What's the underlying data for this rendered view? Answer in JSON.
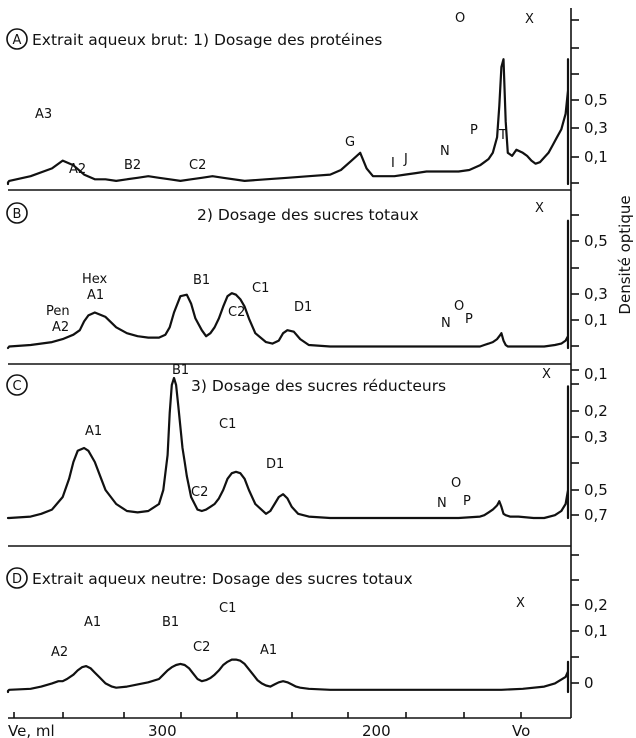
{
  "chart_data": [
    {
      "type": "line",
      "panel": "A",
      "title": "Extrait aqueux brut: 1) Dosage des protéines",
      "x": [
        390,
        380,
        370,
        360,
        350,
        345,
        340,
        335,
        330,
        325,
        320,
        315,
        310,
        305,
        300,
        295,
        290,
        285,
        280,
        275,
        270,
        260,
        250,
        240,
        230,
        220,
        215,
        210,
        206,
        203,
        200,
        190,
        185,
        180,
        175,
        170,
        165,
        160,
        155,
        150,
        148,
        146,
        144,
        142,
        141,
        140,
        139,
        138,
        137,
        135,
        133,
        130,
        128,
        126,
        124,
        122,
        120,
        118,
        116,
        114,
        112,
        110,
        108,
        106,
        104,
        102,
        100,
        98,
        96,
        94,
        92,
        90,
        88,
        86,
        84,
        80,
        70
      ],
      "y": [
        0,
        0.01,
        0.02,
        0.05,
        0.1,
        0.15,
        0.12,
        0.06,
        0.03,
        0.03,
        0.02,
        0.03,
        0.04,
        0.05,
        0.04,
        0.03,
        0.02,
        0.03,
        0.04,
        0.05,
        0.04,
        0.02,
        0.03,
        0.04,
        0.05,
        0.06,
        0.09,
        0.15,
        0.2,
        0.1,
        0.05,
        0.05,
        0.06,
        0.07,
        0.08,
        0.08,
        0.08,
        0.08,
        0.09,
        0.12,
        0.14,
        0.16,
        0.2,
        0.3,
        0.5,
        0.75,
        0.8,
        0.4,
        0.2,
        0.18,
        0.22,
        0.2,
        0.18,
        0.15,
        0.13,
        0.14,
        0.17,
        0.2,
        0.25,
        0.3,
        0.35,
        0.45,
        0.6,
        0.73,
        0.79,
        0.8,
        0.79,
        0.72,
        0.55,
        0.35,
        0.18,
        0.08,
        0.03,
        0.01,
        0.0,
        0,
        0
      ],
      "right_axis_ticks": [
        "0,5",
        "0,3",
        "0,1"
      ],
      "peak_labels": [
        "A3",
        "A2",
        "B2",
        "C2",
        "G",
        "I",
        "J",
        "N",
        "O",
        "P",
        "T",
        "X"
      ]
    },
    {
      "type": "line",
      "panel": "B",
      "title": "2) Dosage des sucres totaux",
      "x": [
        390,
        380,
        370,
        360,
        350,
        345,
        340,
        337,
        335,
        333,
        330,
        325,
        320,
        315,
        310,
        305,
        300,
        297,
        295,
        293,
        290,
        287,
        285,
        283,
        280,
        278,
        276,
        274,
        272,
        270,
        268,
        266,
        264,
        262,
        260,
        258,
        255,
        250,
        247,
        244,
        242,
        240,
        237,
        234,
        230,
        220,
        210,
        200,
        190,
        180,
        170,
        160,
        155,
        150,
        148,
        146,
        144,
        142,
        141,
        140,
        139,
        138,
        137,
        136,
        134,
        130,
        125,
        120,
        115,
        112,
        110,
        108,
        106,
        104,
        102,
        100,
        99,
        98,
        96,
        94,
        92,
        90,
        88,
        86,
        84,
        80,
        70
      ],
      "y": [
        0,
        0,
        0.01,
        0.02,
        0.04,
        0.06,
        0.09,
        0.12,
        0.18,
        0.22,
        0.24,
        0.21,
        0.14,
        0.1,
        0.08,
        0.07,
        0.07,
        0.09,
        0.14,
        0.24,
        0.35,
        0.36,
        0.3,
        0.2,
        0.12,
        0.08,
        0.1,
        0.14,
        0.2,
        0.28,
        0.35,
        0.37,
        0.36,
        0.33,
        0.28,
        0.2,
        0.1,
        0.04,
        0.03,
        0.05,
        0.1,
        0.12,
        0.11,
        0.06,
        0.02,
        0.01,
        0.01,
        0.01,
        0.01,
        0.01,
        0.01,
        0.01,
        0.01,
        0.01,
        0.02,
        0.03,
        0.04,
        0.06,
        0.08,
        0.1,
        0.05,
        0.02,
        0.01,
        0.01,
        0.01,
        0.01,
        0.01,
        0.01,
        0.02,
        0.03,
        0.05,
        0.08,
        0.12,
        0.2,
        0.3,
        0.45,
        0.55,
        0.65,
        0.82,
        0.86,
        0.82,
        0.65,
        0.4,
        0.2,
        0.07,
        0.01,
        0
      ],
      "right_axis_ticks": [
        "0,5",
        "0,3",
        "0,1"
      ],
      "peak_labels": [
        "Pen A2",
        "Hex A1",
        "B1",
        "C2",
        "C1",
        "D1",
        "N",
        "O",
        "P",
        "X"
      ]
    },
    {
      "type": "line",
      "panel": "C",
      "title": "3) Dosage des sucres réducteurs",
      "x": [
        390,
        380,
        370,
        360,
        355,
        350,
        345,
        342,
        340,
        338,
        335,
        333,
        330,
        327,
        325,
        320,
        315,
        310,
        305,
        300,
        298,
        296,
        295,
        294,
        293,
        292,
        291,
        290,
        289,
        288,
        287,
        285,
        282,
        280,
        278,
        276,
        274,
        272,
        270,
        268,
        266,
        264,
        262,
        260,
        258,
        255,
        250,
        248,
        246,
        244,
        242,
        240,
        238,
        235,
        230,
        220,
        210,
        200,
        190,
        180,
        170,
        160,
        150,
        148,
        146,
        144,
        142,
        141,
        140,
        139,
        138,
        136,
        132,
        125,
        120,
        115,
        112,
        110,
        108,
        106,
        104,
        102,
        100,
        99,
        98,
        96,
        94,
        92,
        90,
        88,
        86,
        84,
        80,
        70
      ],
      "y": [
        0,
        0,
        0,
        0.01,
        0.03,
        0.06,
        0.15,
        0.28,
        0.4,
        0.48,
        0.5,
        0.48,
        0.4,
        0.28,
        0.2,
        0.1,
        0.05,
        0.04,
        0.05,
        0.1,
        0.2,
        0.45,
        0.75,
        0.95,
        1.0,
        0.95,
        0.8,
        0.65,
        0.5,
        0.4,
        0.3,
        0.15,
        0.06,
        0.05,
        0.06,
        0.08,
        0.1,
        0.14,
        0.2,
        0.28,
        0.32,
        0.33,
        0.32,
        0.28,
        0.2,
        0.1,
        0.03,
        0.05,
        0.1,
        0.15,
        0.17,
        0.14,
        0.08,
        0.03,
        0.01,
        0,
        0,
        0,
        0,
        0,
        0,
        0,
        0.01,
        0.02,
        0.04,
        0.06,
        0.09,
        0.12,
        0.08,
        0.03,
        0.02,
        0.01,
        0.01,
        0,
        0,
        0.02,
        0.05,
        0.1,
        0.2,
        0.32,
        0.42,
        0.5,
        0.62,
        0.75,
        0.85,
        0.92,
        0.94,
        0.9,
        0.8,
        0.6,
        0.3,
        0.1,
        0.01,
        0
      ],
      "right_axis_ticks": [
        "0,1",
        "0,2",
        "0,3",
        "0,5",
        "0,7"
      ],
      "peak_labels": [
        "A1",
        "B1",
        "C2",
        "C1",
        "D1",
        "N",
        "O",
        "P",
        "X"
      ]
    },
    {
      "type": "line",
      "panel": "D",
      "title": "Extrait aqueux neutre: Dosage des sucres totaux",
      "x": [
        390,
        380,
        370,
        360,
        355,
        350,
        347,
        345,
        343,
        340,
        338,
        336,
        334,
        332,
        330,
        328,
        325,
        322,
        320,
        315,
        310,
        305,
        300,
        298,
        296,
        294,
        292,
        290,
        288,
        286,
        284,
        282,
        280,
        278,
        276,
        274,
        272,
        270,
        268,
        266,
        264,
        262,
        260,
        258,
        256,
        254,
        252,
        250,
        248,
        246,
        244,
        242,
        240,
        238,
        236,
        234,
        230,
        220,
        210,
        200,
        190,
        180,
        170,
        160,
        150,
        140,
        130,
        120,
        115,
        110,
        108,
        106,
        104,
        102,
        100,
        99,
        98,
        96,
        94,
        92,
        90,
        88,
        86,
        84,
        80,
        70
      ],
      "y": [
        0,
        0.01,
        0.02,
        0.03,
        0.05,
        0.08,
        0.1,
        0.1,
        0.12,
        0.16,
        0.2,
        0.23,
        0.24,
        0.22,
        0.18,
        0.14,
        0.08,
        0.05,
        0.04,
        0.05,
        0.07,
        0.09,
        0.12,
        0.16,
        0.2,
        0.23,
        0.25,
        0.26,
        0.25,
        0.22,
        0.17,
        0.12,
        0.1,
        0.11,
        0.13,
        0.16,
        0.2,
        0.25,
        0.28,
        0.3,
        0.3,
        0.29,
        0.26,
        0.21,
        0.16,
        0.11,
        0.08,
        0.06,
        0.05,
        0.07,
        0.09,
        0.1,
        0.09,
        0.07,
        0.05,
        0.04,
        0.03,
        0.02,
        0.02,
        0.02,
        0.02,
        0.02,
        0.02,
        0.02,
        0.02,
        0.02,
        0.03,
        0.05,
        0.08,
        0.14,
        0.19,
        0.23,
        0.25,
        0.27,
        0.28,
        0.28,
        0.27,
        0.22,
        0.12,
        0.06,
        0.03,
        0.02,
        0.01,
        0.01,
        0,
        0
      ],
      "right_axis_ticks": [
        "0,2",
        "0,1",
        "0"
      ],
      "peak_labels": [
        "A2",
        "A1",
        "B1",
        "C2",
        "C1",
        "A1",
        "X"
      ]
    }
  ],
  "x_axis": {
    "ticks": [
      "Ve, ml",
      "300",
      "200",
      "Vo"
    ],
    "xlim": [
      390,
      70
    ]
  },
  "right_axis_label": "Densité optique"
}
